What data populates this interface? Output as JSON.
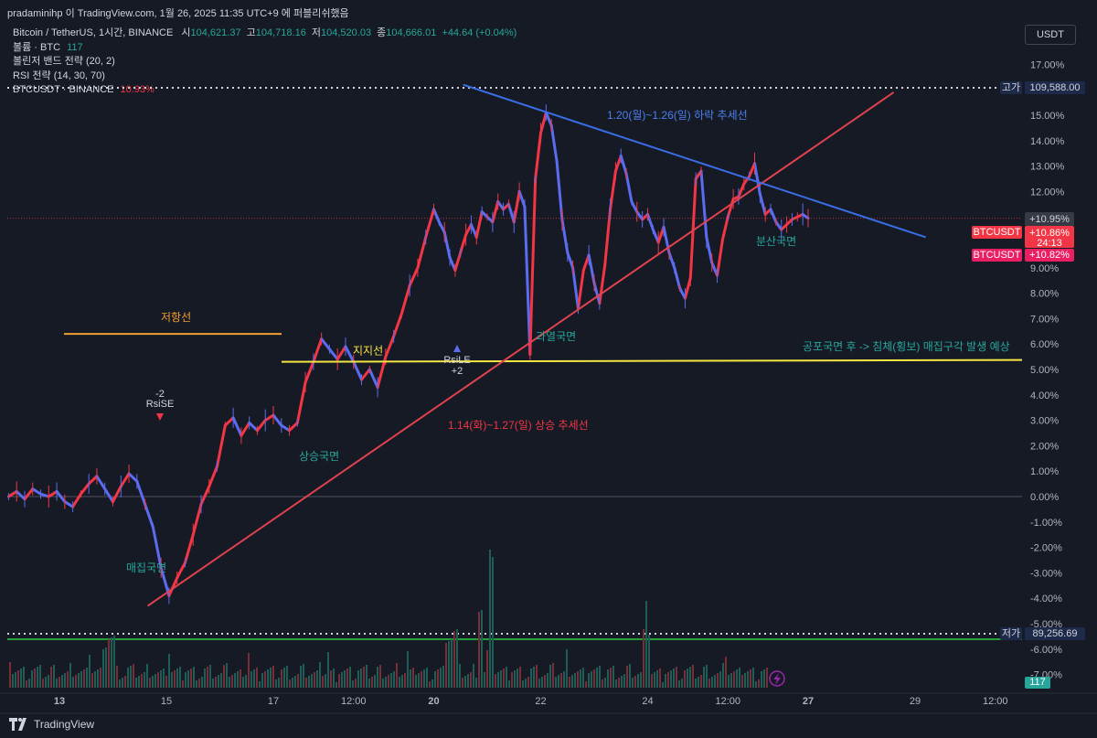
{
  "header": {
    "snapshot_text": "pradaminihp 이 TradingView.com, 1월 26, 2025 11:35 UTC+9 에 퍼블리쉬했음"
  },
  "legend": {
    "symbol": "Bitcoin / TetherUS, 1시간, BINANCE",
    "open_label": "시",
    "open": "104,621.37",
    "high_label": "고",
    "high": "104,718.16",
    "low_label": "저",
    "low": "104,520.03",
    "close_label": "종",
    "close": "104,666.01",
    "change": "+44.64 (+0.04%)",
    "volume_label": "볼륨 · BTC",
    "volume_value": "117",
    "indicator_bb": "볼린저 밴드 전략 (20, 2)",
    "indicator_rsi": "RSI 전략 (14, 30, 70)",
    "compare_label": "BTCUSDT · BINANCE",
    "compare_value": "10.93%"
  },
  "currency_button": "USDT",
  "footer": {
    "brand": "TradingView"
  },
  "colors": {
    "background": "#161a25",
    "up": "#f23645",
    "down": "#5b6cf0",
    "downtrend": "#3a6ee8",
    "uptrend": "#e0424f",
    "resistance": "#f0a030",
    "support": "#f5e642",
    "annotation_teal": "#26a69a",
    "annotation_red": "#f23645",
    "annotation_blue": "#4c7ff0"
  },
  "chart_data": {
    "type": "line",
    "y_scale": "percent",
    "ylim": [
      -7.5,
      17.5
    ],
    "y_ticks": [
      "17.00%",
      "16.00%",
      "15.00%",
      "14.00%",
      "13.00%",
      "12.00%",
      "11.00%",
      "10.00%",
      "9.00%",
      "8.00%",
      "7.00%",
      "6.00%",
      "5.00%",
      "4.00%",
      "3.00%",
      "2.00%",
      "1.00%",
      "0.00%",
      "-1.00%",
      "-2.00%",
      "-3.00%",
      "-4.00%",
      "-5.00%",
      "-6.00%",
      "-7.00%"
    ],
    "x_ticks": [
      "13",
      "15",
      "17",
      "12:00",
      "20",
      "22",
      "24",
      "12:00",
      "27",
      "29",
      "12:00"
    ],
    "x_ticks_bold": [
      "13",
      "20",
      "27"
    ],
    "x_unit_hours_per_day": 24,
    "series": [
      {
        "percent_change": [
          0.0,
          0.2,
          -0.1,
          0.3,
          0.1,
          0.0,
          0.2,
          -0.2,
          -0.4,
          0.1,
          0.5,
          0.8,
          0.3,
          -0.2,
          0.4,
          0.9,
          0.6,
          -0.3,
          -1.2,
          -2.8,
          -3.9,
          -3.2,
          -2.6,
          -1.5,
          -0.3,
          0.4,
          1.2,
          2.8,
          3.1,
          2.4,
          2.9,
          2.6,
          3.0,
          3.2,
          2.8,
          2.6,
          2.9,
          4.5,
          5.3,
          6.2,
          5.8,
          5.4,
          5.9,
          5.3,
          4.6,
          5.0,
          4.3,
          5.5,
          6.3,
          7.2,
          8.3,
          9.0,
          10.2,
          11.3,
          10.8,
          10.4,
          9.4,
          8.9,
          9.6,
          10.3,
          10.7,
          10.2,
          11.2,
          11.0,
          10.8,
          11.6,
          11.3,
          11.5,
          10.8,
          12.0,
          11.4,
          5.6,
          12.5,
          14.3,
          15.1,
          14.6,
          13.2,
          10.9,
          9.6,
          9.0,
          7.4,
          8.9,
          9.5,
          8.4,
          7.6,
          9.1,
          11.3,
          12.8,
          13.4,
          12.7,
          11.6,
          11.2,
          10.9,
          11.1,
          10.5,
          10.0,
          10.6,
          9.6,
          9.0,
          8.2,
          7.8,
          8.6,
          12.5,
          12.8,
          10.2,
          9.2,
          8.7,
          10.1,
          11.0,
          11.7,
          11.8,
          12.3,
          12.6,
          13.1,
          11.9,
          11.1,
          11.3,
          10.8,
          10.5,
          10.7,
          10.9,
          11.0,
          11.1,
          10.95
        ],
        "x_days": [
          12.05,
          12.2,
          12.35,
          12.5,
          12.65,
          12.8,
          12.95,
          13.1,
          13.25,
          13.4,
          13.55,
          13.7,
          13.85,
          14.0,
          14.15,
          14.3,
          14.45,
          14.6,
          14.75,
          14.9,
          15.05,
          15.2,
          15.35,
          15.5,
          15.65,
          15.8,
          15.95,
          16.1,
          16.25,
          16.4,
          16.55,
          16.7,
          16.85,
          17.0,
          17.15,
          17.3,
          17.45,
          17.6,
          17.75,
          17.9,
          18.05,
          18.2,
          18.35,
          18.5,
          18.65,
          18.8,
          18.95,
          19.1,
          19.25,
          19.4,
          19.55,
          19.7,
          19.85,
          20.0,
          20.1,
          20.2,
          20.3,
          20.4,
          20.5,
          20.6,
          20.7,
          20.8,
          20.9,
          21.0,
          21.1,
          21.2,
          21.3,
          21.4,
          21.5,
          21.6,
          21.7,
          21.8,
          21.9,
          22.0,
          22.1,
          22.2,
          22.3,
          22.4,
          22.5,
          22.6,
          22.7,
          22.8,
          22.9,
          23.0,
          23.1,
          23.2,
          23.3,
          23.4,
          23.5,
          23.6,
          23.7,
          23.8,
          23.9,
          24.0,
          24.1,
          24.2,
          24.3,
          24.4,
          24.5,
          24.6,
          24.7,
          24.8,
          24.9,
          25.0,
          25.1,
          25.2,
          25.3,
          25.4,
          25.5,
          25.6,
          25.7,
          25.8,
          25.9,
          26.0,
          26.1,
          26.2,
          26.3,
          26.4,
          26.5,
          26.6,
          26.7,
          26.8,
          26.9,
          27.0
        ]
      }
    ],
    "price_labels": {
      "high_tag": "고가",
      "high_value": "109,588.00",
      "low_tag": "저가",
      "low_value": "89,256.69",
      "current_change": "+10.95%",
      "btcusdt_1": "BTCUSDT",
      "btcusdt_1_value": "+10.86%",
      "countdown": "24:13",
      "btcusdt_2": "BTCUSDT",
      "btcusdt_2_value": "+10.82%",
      "volume_badge": "117"
    },
    "annotations": {
      "resistance": "저항선",
      "support": "지지선",
      "downtrend": "1.20(월)~1.26(일) 하락 추세선",
      "uptrend": "1.14(화)~1.27(일) 상승 추세선",
      "accumulation": "매집국면",
      "rising": "상승국면",
      "overheated": "과열국면",
      "distribution": "분산국면",
      "forecast": "공포국면 후 -> 침체(횡보) 매집구각 발생 예상",
      "rsi_signal_1_top": "-2",
      "rsi_signal_1": "RsiSE",
      "rsi_signal_2": "RsiLE",
      "rsi_signal_2_bottom": "+2"
    },
    "trendlines": {
      "resistance_level_pct": 6.4,
      "support_level_pct": 5.3,
      "uptrend_from": {
        "day": 14.65,
        "pct": -4.3
      },
      "uptrend_to": {
        "day": 28.6,
        "pct": 15.9
      },
      "downtrend_from": {
        "day": 20.55,
        "pct": 16.2
      },
      "downtrend_to": {
        "day": 29.2,
        "pct": 10.2
      }
    }
  }
}
